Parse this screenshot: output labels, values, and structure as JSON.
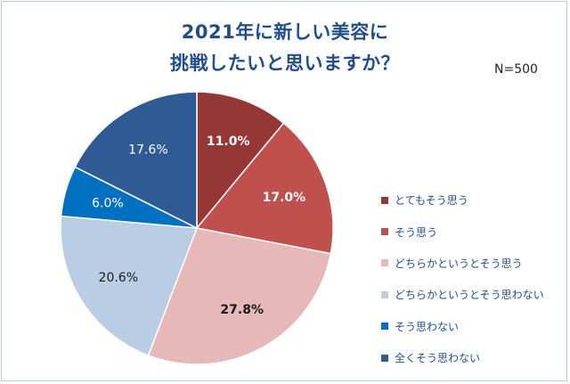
{
  "chart_data": {
    "type": "pie",
    "title_line1": "2021年に新しい美容に",
    "title_line2": "挑戦したいと思いますか？",
    "sample_size": "N=500",
    "slices": [
      {
        "label": "とてもそう思う",
        "value": 11.0,
        "value_label": "11.0%",
        "color": "#953735",
        "label_color": "#ffffff",
        "bold": true
      },
      {
        "label": "そう思う",
        "value": 17.0,
        "value_label": "17.0%",
        "color": "#c0504d",
        "label_color": "#ffffff",
        "bold": true
      },
      {
        "label": "どちらかというとそう思う",
        "value": 27.8,
        "value_label": "27.8%",
        "color": "#e6b9b8",
        "label_color": "#1a1a1a",
        "bold": true
      },
      {
        "label": "どちらかというとそう思わない",
        "value": 20.6,
        "value_label": "20.6%",
        "color": "#b9cde5",
        "label_color": "#1a1a1a",
        "bold": false
      },
      {
        "label": "そう思わない",
        "value": 6.0,
        "value_label": "6.0%",
        "color": "#0070c0",
        "label_color": "#ffffff",
        "bold": false
      },
      {
        "label": "全くそう思わない",
        "value": 17.6,
        "value_label": "17.6%",
        "color": "#2e5b94",
        "label_color": "#ffffff",
        "bold": false
      }
    ]
  }
}
